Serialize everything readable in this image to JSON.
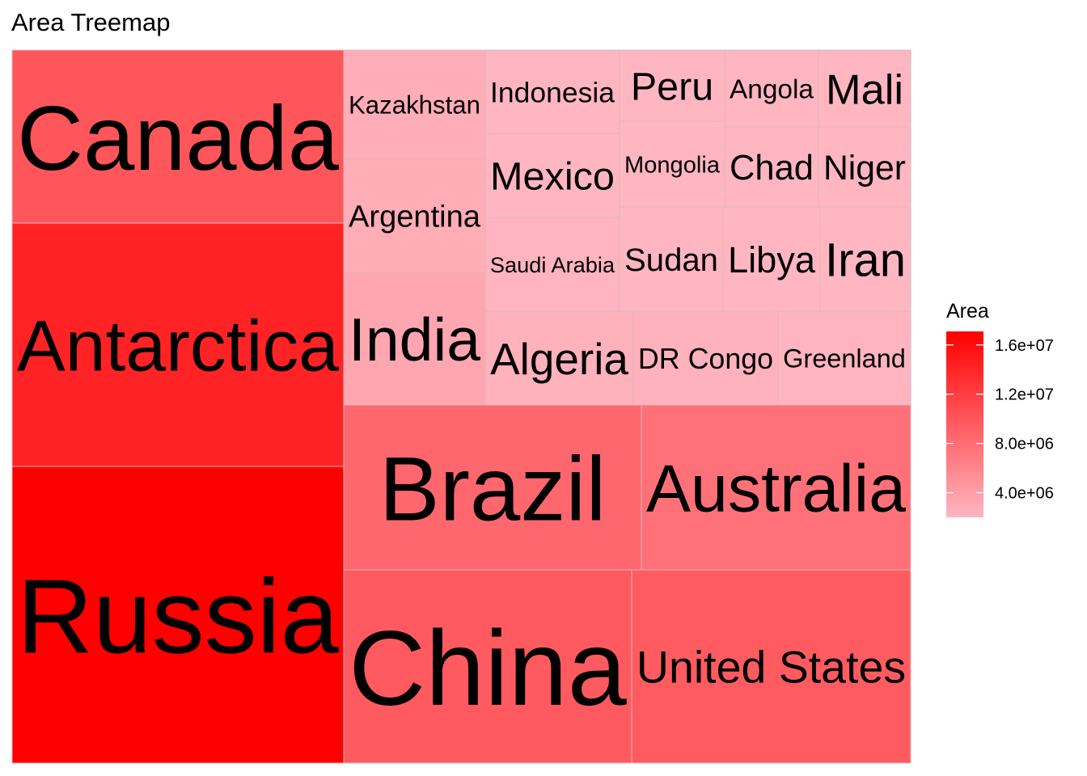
{
  "chart_data": {
    "type": "treemap",
    "title": "Area Treemap",
    "fill_variable": "Area",
    "color_scale": {
      "low": "#ffb6c1",
      "high": "#ff0000",
      "min": 2000000,
      "max": 17100000,
      "ticks": [
        4000000,
        8000000,
        12000000,
        16000000
      ],
      "tick_labels": [
        "4.0e+06",
        "8.0e+06",
        "1.2e+07",
        "1.6e+07"
      ]
    },
    "legend": {
      "title": "Area",
      "position": "right"
    },
    "items": [
      {
        "name": "Russia",
        "value": 17098242
      },
      {
        "name": "Antarctica",
        "value": 14200000
      },
      {
        "name": "Canada",
        "value": 9984670
      },
      {
        "name": "China",
        "value": 9596961
      },
      {
        "name": "United States",
        "value": 9525067
      },
      {
        "name": "Brazil",
        "value": 8515767
      },
      {
        "name": "Australia",
        "value": 7692024
      },
      {
        "name": "India",
        "value": 3287263
      },
      {
        "name": "Argentina",
        "value": 2780400
      },
      {
        "name": "Kazakhstan",
        "value": 2724900
      },
      {
        "name": "Algeria",
        "value": 2381741
      },
      {
        "name": "DR Congo",
        "value": 2344858
      },
      {
        "name": "Greenland",
        "value": 2166086
      },
      {
        "name": "Saudi Arabia",
        "value": 2149690
      },
      {
        "name": "Mexico",
        "value": 1964375
      },
      {
        "name": "Indonesia",
        "value": 1904569
      },
      {
        "name": "Sudan",
        "value": 1861484
      },
      {
        "name": "Libya",
        "value": 1759540
      },
      {
        "name": "Iran",
        "value": 1648195
      },
      {
        "name": "Mongolia",
        "value": 1564110
      },
      {
        "name": "Peru",
        "value": 1285216
      },
      {
        "name": "Chad",
        "value": 1284000
      },
      {
        "name": "Niger",
        "value": 1267000
      },
      {
        "name": "Angola",
        "value": 1246700
      },
      {
        "name": "Mali",
        "value": 1240192
      }
    ]
  }
}
